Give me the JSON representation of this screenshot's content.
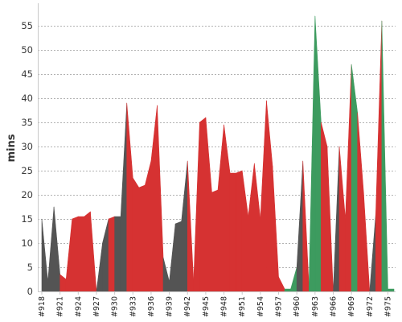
{
  "chart_data": {
    "type": "area",
    "title": "",
    "xlabel": "",
    "ylabel": "mins",
    "ylim": [
      0,
      60
    ],
    "yticks": [
      0,
      5,
      10,
      15,
      20,
      25,
      30,
      35,
      40,
      45,
      50,
      55
    ],
    "grid": true,
    "legend": "none",
    "x": [
      918,
      919,
      920,
      921,
      922,
      923,
      924,
      925,
      926,
      927,
      928,
      929,
      930,
      931,
      932,
      933,
      934,
      935,
      936,
      937,
      938,
      939,
      940,
      941,
      942,
      943,
      944,
      945,
      946,
      947,
      948,
      949,
      950,
      951,
      952,
      953,
      954,
      955,
      956,
      957,
      958,
      959,
      960,
      961,
      962,
      963,
      964,
      965,
      966,
      967,
      968,
      969,
      970,
      971,
      972,
      973,
      974,
      975,
      976
    ],
    "x_tick_labels": [
      "#918",
      "#921",
      "#924",
      "#927",
      "#930",
      "#933",
      "#936",
      "#939",
      "#942",
      "#945",
      "#948",
      "#951",
      "#954",
      "#957",
      "#960",
      "#963",
      "#966",
      "#969",
      "#972",
      "#975"
    ],
    "values": [
      15,
      2,
      17.5,
      3.5,
      2.5,
      15,
      15.5,
      15.5,
      16.5,
      0,
      10,
      15,
      15.5,
      15.5,
      39,
      23.5,
      21.5,
      22,
      27,
      38.5,
      7,
      2,
      14,
      14.5,
      27,
      2,
      35,
      36,
      20.5,
      21,
      34.5,
      24.5,
      24.5,
      25,
      15.5,
      26.5,
      15,
      39.5,
      26,
      3,
      0.5,
      0.5,
      5,
      27,
      1,
      57,
      35,
      30,
      0,
      30,
      15,
      47,
      37,
      20.5,
      0,
      16,
      56,
      0.5,
      0.5
    ],
    "status": [
      "gray",
      "gray",
      "gray",
      "red",
      "red",
      "red",
      "red",
      "red",
      "red",
      "gray",
      "gray",
      "red",
      "gray",
      "gray",
      "red",
      "red",
      "red",
      "red",
      "red",
      "red",
      "gray",
      "gray",
      "gray",
      "gray",
      "red",
      "red",
      "red",
      "red",
      "red",
      "red",
      "red",
      "red",
      "red",
      "red",
      "red",
      "red",
      "red",
      "red",
      "red",
      "red",
      "green",
      "green",
      "gray",
      "red",
      "green",
      "green",
      "red",
      "red",
      "gray",
      "red",
      "red",
      "green",
      "red",
      "red",
      "gray",
      "red",
      "green",
      "green",
      "green"
    ],
    "colors": {
      "red": "#d63232",
      "gray": "#545454",
      "green": "#3d9b5f",
      "grid": "#999999",
      "axis": "#c9c9c9"
    }
  }
}
